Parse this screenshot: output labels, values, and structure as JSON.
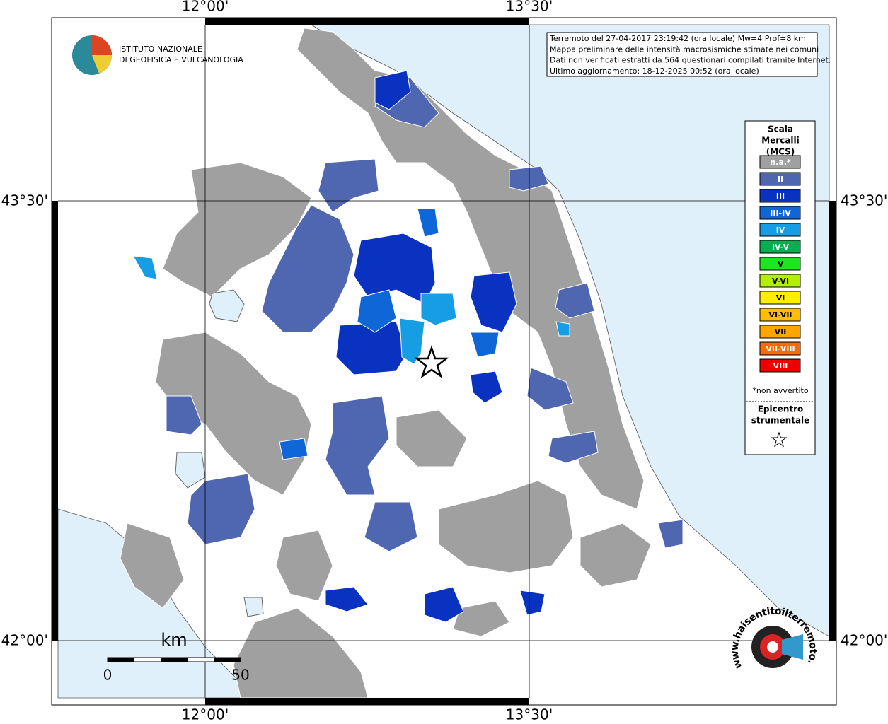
{
  "logo": {
    "line1": "ISTITUTO NAZIONALE",
    "line2": "DI GEOFISICA E VULCANOLOGIA"
  },
  "info": [
    "Terremoto del 27-04-2017 23:19:42 (ora locale) Mw=4 Prof=8 km",
    "Mappa preliminare delle intensità macrosismiche stimate nei comuni",
    "Dati non verificati estratti da 564 questionari compilati tramite Internet.",
    "Ultimo aggiornamento: 18-12-2025 00:52 (ora locale)"
  ],
  "grid_labels": {
    "lon_west": "12°00'",
    "lon_east": "13°30'",
    "lat_north": "43°30'",
    "lat_south": "42°00'"
  },
  "legend": {
    "title": [
      "Scala",
      "Mercalli",
      "(MCS)"
    ],
    "items": [
      {
        "label": "n.a.*",
        "color": "#a0a0a0"
      },
      {
        "label": "II",
        "color": "#4f66b0"
      },
      {
        "label": "III",
        "color": "#0a32c0"
      },
      {
        "label": "III-IV",
        "color": "#0f66d6"
      },
      {
        "label": "IV",
        "color": "#169de3"
      },
      {
        "label": "IV-V",
        "color": "#00b050"
      },
      {
        "label": "V",
        "color": "#1ee61e"
      },
      {
        "label": "V-VI",
        "color": "#b4ee00"
      },
      {
        "label": "VI",
        "color": "#ffee00"
      },
      {
        "label": "VI-VII",
        "color": "#ffbe00"
      },
      {
        "label": "VII",
        "color": "#ffa500"
      },
      {
        "label": "VII-VIII",
        "color": "#ff6a00"
      },
      {
        "label": "VIII",
        "color": "#ee0000"
      }
    ],
    "footnote": "*non avvertito",
    "epicenter": [
      "Epicentro",
      "strumentale"
    ]
  },
  "scale": {
    "unit": "km",
    "start": "0",
    "end": "50"
  },
  "site": "www.haisentitoilterremoto.it"
}
